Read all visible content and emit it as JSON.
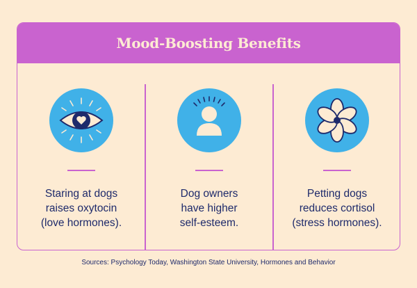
{
  "header": {
    "title": "Mood-Boosting Benefits"
  },
  "benefits": [
    {
      "icon": "eye-heart-icon",
      "text": "Staring at dogs\nraises oxytocin\n(love hormones)."
    },
    {
      "icon": "person-icon",
      "text": "Dog owners\nhave higher\nself-esteem."
    },
    {
      "icon": "flower-icon",
      "text": "Petting dogs\nreduces cortisol\n(stress hormones)."
    }
  ],
  "footer": {
    "sources": "Sources: Psychology Today, Washington State University, Hormones and Behavior"
  },
  "colors": {
    "background": "#FDEBD3",
    "accent": "#C963CF",
    "icon_circle": "#40B1E8",
    "navy": "#1E2A6B",
    "cream": "#FDEBD3"
  }
}
